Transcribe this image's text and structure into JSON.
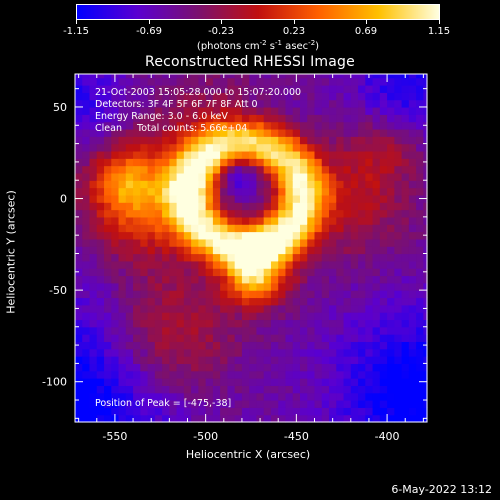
{
  "colorbar": {
    "ticks": [
      "-1.15",
      "-0.69",
      "-0.23",
      "0.23",
      "0.69",
      "1.15"
    ],
    "unit_html": "(photons cm<sup>-2</sup> s<sup>-1</sup> asec<sup>-2</sup>)"
  },
  "plot": {
    "title": "Reconstructed RHESSI Image",
    "xlabel": "Heliocentric X (arcsec)",
    "ylabel": "Heliocentric Y (arcsec)",
    "xticks": [
      "-550",
      "-500",
      "-450",
      "-400"
    ],
    "yticks": [
      "50",
      "0",
      "-50",
      "-100"
    ]
  },
  "annotations": {
    "time": "21-Oct-2003 15:05:28.000 to 15:07:20.000",
    "detectors": "Detectors: 3F 4F 5F 6F 7F 8F Att 0",
    "energy": "Energy Range: 3.0 - 6.0 keV",
    "clean": "Clean     Total counts: 5.66e+04",
    "peak": "Position of Peak = [-475,-38]"
  },
  "footer": {
    "timestamp": "6-May-2022 13:12"
  },
  "chart_data": {
    "type": "heatmap",
    "title": "Reconstructed RHESSI Image",
    "xlabel": "Heliocentric X (arcsec)",
    "ylabel": "Heliocentric Y (arcsec)",
    "xlim": [
      -572,
      -378
    ],
    "ylim": [
      -122,
      68
    ],
    "color_range": [
      -1.15,
      1.15
    ],
    "colormap": [
      "#0000ff",
      "#5a00d0",
      "#7a1070",
      "#c01010",
      "#ff6000",
      "#ffc000",
      "#ffffe0"
    ],
    "peak_position": [
      -475,
      -38
    ]
  }
}
